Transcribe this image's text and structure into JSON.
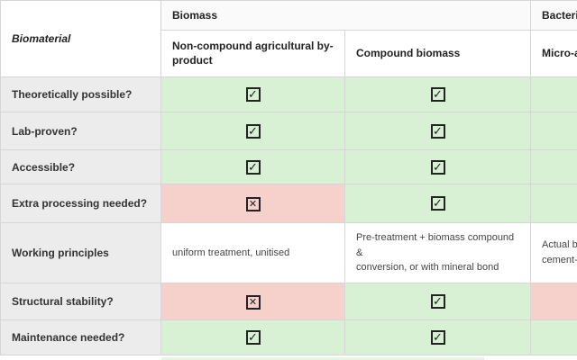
{
  "colors": {
    "positive_cell": "#d8f0d4",
    "negative_cell": "#f6d0cb",
    "row_label_bg": "#ececec",
    "border": "#d6d6d6",
    "checkbox": "#232323"
  },
  "table": {
    "corner_label": "Biomaterial",
    "group_headers": [
      {
        "label": "Biomass"
      },
      {
        "label": "Bacteria"
      }
    ],
    "column_headers": [
      "Non-compound agricultural by-product",
      "Compound biomass",
      "Micro-algae"
    ],
    "checkbox_glyphs": {
      "checked": "✓",
      "crossed": "✕"
    },
    "rows": [
      {
        "label": "Theoretically possible?",
        "cells": [
          {
            "type": "checkbox",
            "state": "checked",
            "bg": "green"
          },
          {
            "type": "checkbox",
            "state": "checked",
            "bg": "green"
          },
          {
            "type": "checkbox",
            "state": "checked",
            "bg": "green"
          }
        ]
      },
      {
        "label": "Lab-proven?",
        "cells": [
          {
            "type": "checkbox",
            "state": "checked",
            "bg": "green"
          },
          {
            "type": "checkbox",
            "state": "checked",
            "bg": "green"
          },
          {
            "type": "checkbox",
            "state": "checked",
            "bg": "green"
          }
        ]
      },
      {
        "label": "Accessible?",
        "cells": [
          {
            "type": "checkbox",
            "state": "checked",
            "bg": "green"
          },
          {
            "type": "checkbox",
            "state": "checked",
            "bg": "green"
          },
          {
            "type": "checkbox",
            "state": "checked",
            "bg": "green"
          }
        ]
      },
      {
        "label": "Extra processing needed?",
        "cells": [
          {
            "type": "checkbox",
            "state": "crossed",
            "bg": "red"
          },
          {
            "type": "checkbox",
            "state": "checked",
            "bg": "green"
          },
          {
            "type": "checkbox",
            "state": "checked",
            "bg": "green"
          }
        ]
      },
      {
        "label": "Working principles",
        "cells": [
          {
            "type": "text",
            "text": "uniform treatment, unitised",
            "bg": "white"
          },
          {
            "type": "text",
            "text": "Pre-treatment + biomass compound &\nconversion, or with mineral bond",
            "bg": "white"
          },
          {
            "type": "text",
            "text": "Actual bacteria,\ncement-producing",
            "bg": "white"
          }
        ]
      },
      {
        "label": "Structural stability?",
        "cells": [
          {
            "type": "checkbox",
            "state": "crossed",
            "bg": "red"
          },
          {
            "type": "checkbox",
            "state": "checked",
            "bg": "green"
          },
          {
            "type": "checkbox",
            "state": "crossed",
            "bg": "red"
          }
        ]
      },
      {
        "label": "Maintenance needed?",
        "cells": [
          {
            "type": "checkbox",
            "state": "checked",
            "bg": "green"
          },
          {
            "type": "checkbox",
            "state": "checked",
            "bg": "green"
          },
          {
            "type": "checkbox",
            "state": "checked",
            "bg": "green"
          }
        ]
      }
    ]
  }
}
